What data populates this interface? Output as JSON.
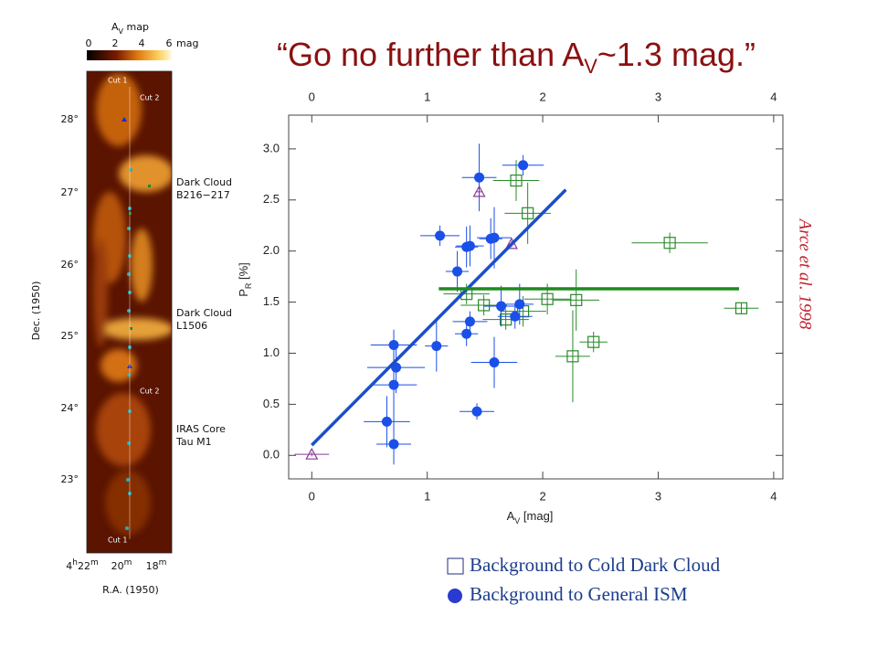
{
  "title_parts": [
    "“Go no further than A",
    "V",
    "~1.3 mag.”"
  ],
  "credit": "Arce et al. 1998",
  "map": {
    "title_parts": [
      "A",
      "V",
      " map"
    ],
    "colorbar_ticks": [
      "0",
      "2",
      "4",
      "6"
    ],
    "colorbar_unit": "mag",
    "dec_ticks": [
      "28°",
      "27°",
      "26°",
      "25°",
      "24°",
      "23°"
    ],
    "dec_label": "Dec. (1950)",
    "ra_ticks": [
      [
        "4",
        "h",
        "22",
        "m"
      ],
      [
        "20",
        "m"
      ],
      [
        "18",
        "m"
      ]
    ],
    "ra_label": "R.A. (1950)",
    "annotations": [
      "Cut 1",
      "Cut 2",
      "Dark Cloud",
      "B216−217",
      "Dark Cloud",
      "L1506",
      "Cut 2",
      "IRAS Core",
      "Tau M1",
      "Cut 1"
    ]
  },
  "chart_data": {
    "type": "scatter",
    "xlabel_parts": [
      "A",
      "V",
      " [mag]"
    ],
    "ylabel_parts": [
      "P",
      "R",
      " [%]"
    ],
    "xlim": [
      -0.2,
      4.08
    ],
    "ylim": [
      -0.23,
      3.33
    ],
    "xticks": [
      0,
      1,
      2,
      3,
      4
    ],
    "yticks": [
      {
        "value": 0,
        "label": "0.0"
      },
      0.5,
      {
        "value": 1,
        "label": "1.0"
      },
      1.5,
      {
        "value": 2,
        "label": "2.0"
      },
      2.5,
      {
        "value": 3,
        "label": "3.0"
      }
    ],
    "series": [
      {
        "name": "Background to Cold Dark Cloud",
        "color": "#2a8a2a",
        "marker": "square",
        "x": [
          1.77,
          1.87,
          3.1,
          1.34,
          1.49,
          1.68,
          1.83,
          2.04,
          2.29,
          2.44,
          2.26,
          3.72
        ],
        "values": [
          2.69,
          2.37,
          2.08,
          1.58,
          1.47,
          1.33,
          1.41,
          1.53,
          1.52,
          1.11,
          0.97,
          1.44
        ],
        "xerr": [
          0.2,
          0.2,
          0.33,
          0.2,
          0.2,
          0.2,
          0.2,
          0.2,
          0.2,
          0.12,
          0.15,
          0.15
        ],
        "yerr": [
          0.2,
          0.3,
          0.1,
          0.1,
          0.1,
          0.1,
          0.15,
          0.15,
          0.3,
          0.1,
          0.45,
          0.05
        ]
      },
      {
        "name": "Background to General ISM",
        "color": "#1a4fe8",
        "marker": "circle",
        "x": [
          1.45,
          1.83,
          1.11,
          1.34,
          1.37,
          1.55,
          1.58,
          1.26,
          1.64,
          1.8,
          1.76,
          1.37,
          1.34,
          1.08,
          0.71,
          0.73,
          0.71,
          1.58,
          0.65,
          0.71,
          1.43
        ],
        "values": [
          2.72,
          2.84,
          2.15,
          2.04,
          2.05,
          2.12,
          2.13,
          1.8,
          1.46,
          1.48,
          1.36,
          1.31,
          1.19,
          1.07,
          1.08,
          0.86,
          0.69,
          0.91,
          0.33,
          0.11,
          0.43
        ],
        "xerr": [
          0.15,
          0.18,
          0.17,
          0.1,
          0.12,
          0.1,
          0.15,
          0.1,
          0.15,
          0.12,
          0.15,
          0.15,
          0.1,
          0.1,
          0.2,
          0.25,
          0.2,
          0.2,
          0.2,
          0.15,
          0.15
        ],
        "yerr": [
          0.33,
          0.1,
          0.1,
          0.2,
          0.2,
          0.2,
          0.3,
          0.2,
          0.2,
          0.2,
          0.12,
          0.1,
          0.12,
          0.25,
          0.15,
          0.25,
          0.4,
          0.25,
          0.25,
          0.2,
          0.08
        ]
      },
      {
        "color": "#8a3a9a",
        "marker": "triangle",
        "x": [
          1.45,
          1.73,
          0
        ],
        "values": [
          2.58,
          2.07,
          0.01
        ],
        "xerr": [
          0.03,
          0.03,
          0.15
        ],
        "yerr": [
          0.03,
          0.03,
          0.02
        ]
      },
      {
        "color": "#1a4fc8",
        "marker": "line",
        "x": [
          0,
          2.2
        ],
        "values": [
          0.1,
          2.6
        ]
      },
      {
        "color": "#1f8a1f",
        "marker": "line",
        "x": [
          1.1,
          3.7
        ],
        "values": [
          1.63,
          1.63
        ]
      }
    ]
  }
}
